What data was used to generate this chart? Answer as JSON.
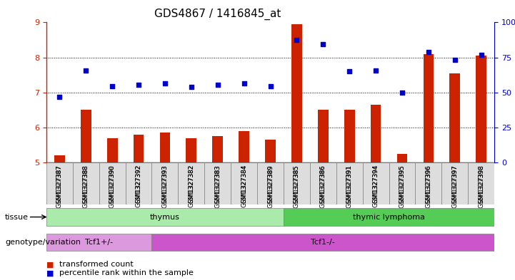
{
  "title": "GDS4867 / 1416845_at",
  "samples": [
    "GSM1327387",
    "GSM1327388",
    "GSM1327390",
    "GSM1327392",
    "GSM1327393",
    "GSM1327382",
    "GSM1327383",
    "GSM1327384",
    "GSM1327389",
    "GSM1327385",
    "GSM1327386",
    "GSM1327391",
    "GSM1327394",
    "GSM1327395",
    "GSM1327396",
    "GSM1327397",
    "GSM1327398"
  ],
  "bar_values": [
    5.2,
    6.5,
    5.7,
    5.8,
    5.85,
    5.7,
    5.75,
    5.9,
    5.65,
    8.95,
    6.5,
    6.5,
    6.65,
    5.25,
    8.1,
    7.55,
    8.05
  ],
  "dot_values": [
    6.87,
    7.62,
    7.18,
    7.22,
    7.25,
    7.15,
    7.22,
    7.25,
    7.18,
    8.5,
    8.38,
    7.6,
    7.62,
    7.0,
    8.15,
    7.92,
    8.08
  ],
  "ylim_left": [
    5,
    9
  ],
  "ylim_right": [
    0,
    100
  ],
  "yticks_left": [
    5,
    6,
    7,
    8,
    9
  ],
  "yticks_right": [
    0,
    25,
    50,
    75,
    100
  ],
  "bar_color": "#cc2200",
  "dot_color": "#0000cc",
  "background_color": "#ffffff",
  "plot_bg_color": "#ffffff",
  "grid_color": "#000000",
  "tissue_groups": [
    {
      "label": "thymus",
      "start": 0,
      "end": 9,
      "color": "#99ee99"
    },
    {
      "label": "thymic lymphoma",
      "start": 9,
      "end": 17,
      "color": "#44cc44"
    }
  ],
  "genotype_groups": [
    {
      "label": "Tcf1+/-",
      "start": 0,
      "end": 4,
      "color": "#dd88dd"
    },
    {
      "label": "Tcf1-/-",
      "start": 4,
      "end": 17,
      "color": "#cc44cc"
    }
  ],
  "legend_items": [
    {
      "label": "transformed count",
      "color": "#cc2200",
      "marker": "s"
    },
    {
      "label": "percentile rank within the sample",
      "color": "#0000cc",
      "marker": "s"
    }
  ],
  "xlabel_color": "#cc2200",
  "ylabel_left_color": "#cc2200",
  "ylabel_right_color": "#0000cc",
  "title_fontsize": 11,
  "tick_fontsize": 8,
  "bar_width": 0.4
}
